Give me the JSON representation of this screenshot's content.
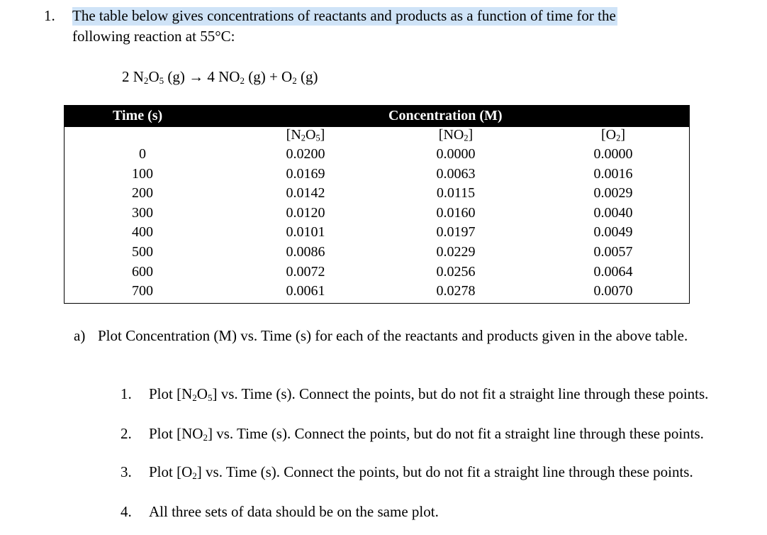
{
  "question": {
    "number": "1.",
    "line1": "The table below gives concentrations of reactants and products as a function of time for the",
    "line2": "following reaction at 55°C:"
  },
  "equation": {
    "n2o5_coef": "2 N",
    "n2o5_sub1": "2",
    "n2o5_mid": "O",
    "n2o5_sub2": "5",
    "n2o5_state": " (g) → 4 NO",
    "no2_sub": "2",
    "no2_state": " (g) + O",
    "o2_sub": "2",
    "o2_state": " (g)"
  },
  "table": {
    "time_header": "Time (s)",
    "conc_header": "Concentration (M)",
    "species": {
      "n2o5": {
        "open": "[N",
        "s1": "2",
        "mid": "O",
        "s2": "5",
        "close": "]"
      },
      "no2": {
        "open": "[NO",
        "s1": "2",
        "close": "]"
      },
      "o2": {
        "open": "[O",
        "s1": "2",
        "close": "]"
      }
    },
    "time": [
      "0",
      "100",
      "200",
      "300",
      "400",
      "500",
      "600",
      "700"
    ],
    "n2o5_values": [
      "0.0200",
      "0.0169",
      "0.0142",
      "0.0120",
      "0.0101",
      "0.0086",
      "0.0072",
      "0.0061"
    ],
    "no2_values": [
      "0.0000",
      "0.0063",
      "0.0115",
      "0.0160",
      "0.0197",
      "0.0229",
      "0.0256",
      "0.0278"
    ],
    "o2_values": [
      "0.0000",
      "0.0016",
      "0.0029",
      "0.0040",
      "0.0049",
      "0.0057",
      "0.0064",
      "0.0070"
    ]
  },
  "part_a": {
    "label": "a)",
    "text": "Plot Concentration (M) vs. Time (s) for each of the reactants and products given in the above table.",
    "items": [
      {
        "num": "1.",
        "pre": "Plot [N",
        "s1": "2",
        "mid": "O",
        "s2": "5",
        "post": "] vs. Time (s).  Connect the points, but do not fit a straight line through these points."
      },
      {
        "num": "2.",
        "pre": "Plot [NO",
        "s1": "2",
        "post": "] vs. Time (s).  Connect the points, but do not fit a straight line through these points."
      },
      {
        "num": "3.",
        "pre": "Plot [O",
        "s1": "2",
        "post": "] vs. Time (s).  Connect the points, but do not fit a straight line through these points."
      },
      {
        "num": "4.",
        "text": "All three sets of data should be on the same plot."
      }
    ]
  },
  "colors": {
    "highlight": "#cfe3f7",
    "header_bg": "#000000",
    "header_fg": "#ffffff"
  }
}
